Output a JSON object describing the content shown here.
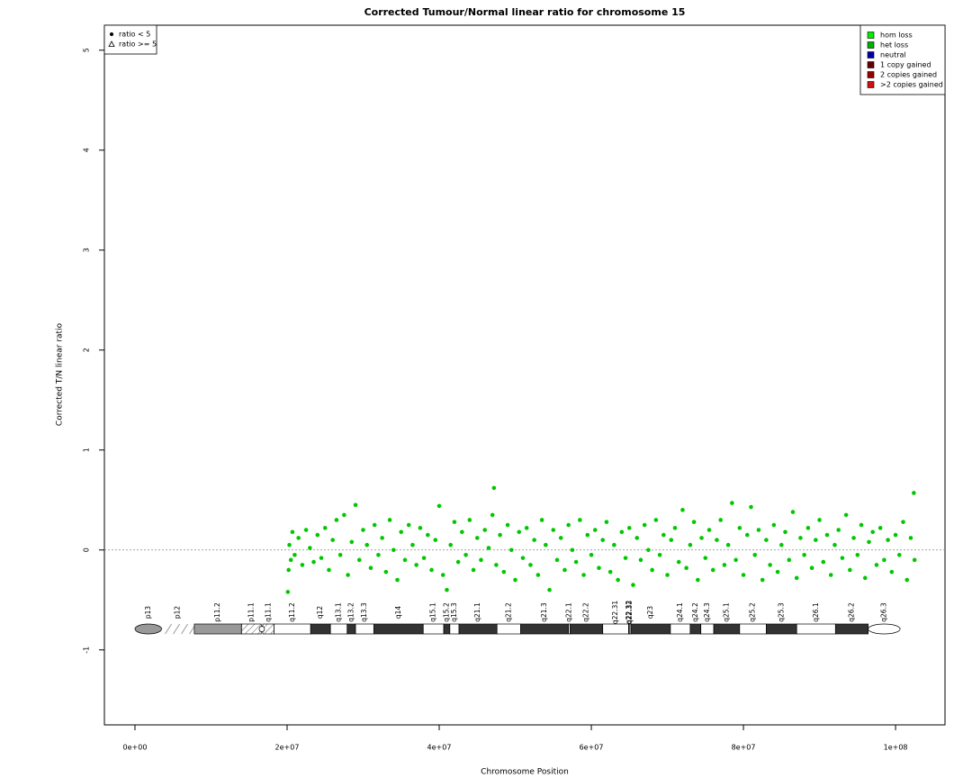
{
  "chart_data": {
    "type": "scatter",
    "title": "Corrected Tumour/Normal linear ratio for chromosome  15",
    "x_label": "Chromosome Position",
    "y_label": "Corrected T/N linear ratio",
    "xlim": [
      -4020000,
      106500000
    ],
    "ylim": [
      -1.75,
      5.25
    ],
    "xticks": [
      {
        "value": 0,
        "label": "0e+00"
      },
      {
        "value": 20000000,
        "label": "2e+07"
      },
      {
        "value": 40000000,
        "label": "4e+07"
      },
      {
        "value": 60000000,
        "label": "6e+07"
      },
      {
        "value": 80000000,
        "label": "8e+07"
      },
      {
        "value": 100000000,
        "label": "1e+08"
      }
    ],
    "yticks": [
      -1,
      0,
      1,
      2,
      3,
      4,
      5
    ],
    "hline": 0,
    "color": "#00c800",
    "x": [
      20100000,
      20200000,
      20300000,
      20500000,
      20700000,
      21000000,
      21500000,
      22000000,
      22500000,
      23000000,
      23500000,
      24000000,
      24500000,
      25000000,
      25500000,
      26000000,
      26500000,
      27000000,
      27500000,
      28000000,
      28500000,
      29000000,
      29500000,
      30000000,
      30500000,
      31000000,
      31500000,
      32000000,
      32500000,
      33000000,
      33500000,
      34000000,
      34500000,
      35000000,
      35500000,
      36000000,
      36500000,
      37000000,
      37500000,
      38000000,
      38500000,
      39000000,
      39500000,
      40000000,
      40500000,
      41000000,
      41500000,
      42000000,
      42500000,
      43000000,
      43500000,
      44000000,
      44500000,
      45000000,
      45500000,
      46000000,
      46500000,
      47000000,
      47200000,
      47500000,
      48000000,
      48500000,
      49000000,
      49500000,
      50000000,
      50500000,
      51000000,
      51500000,
      52000000,
      52500000,
      53000000,
      53500000,
      54000000,
      54500000,
      55000000,
      55500000,
      56000000,
      56500000,
      57000000,
      57500000,
      58000000,
      58500000,
      59000000,
      59500000,
      60000000,
      60500000,
      61000000,
      61500000,
      62000000,
      62500000,
      63000000,
      63500000,
      64000000,
      64500000,
      65000000,
      65500000,
      66000000,
      66500000,
      67000000,
      67500000,
      68000000,
      68500000,
      69000000,
      69500000,
      70000000,
      70500000,
      71000000,
      71500000,
      72000000,
      72500000,
      73000000,
      73500000,
      74000000,
      74500000,
      75000000,
      75500000,
      76000000,
      76500000,
      77000000,
      77500000,
      78000000,
      78500000,
      79000000,
      79500000,
      80000000,
      80500000,
      81000000,
      81500000,
      82000000,
      82500000,
      83000000,
      83500000,
      84000000,
      84500000,
      85000000,
      85500000,
      86000000,
      86500000,
      87000000,
      87500000,
      88000000,
      88500000,
      89000000,
      89500000,
      90000000,
      90500000,
      91000000,
      91500000,
      92000000,
      92500000,
      93000000,
      93500000,
      94000000,
      94500000,
      95000000,
      95500000,
      96000000,
      96500000,
      97000000,
      97500000,
      98000000,
      98500000,
      99000000,
      99500000,
      100000000,
      100500000,
      101000000,
      101500000,
      102000000,
      102400000,
      102500000
    ],
    "values": [
      -0.42,
      -0.2,
      0.05,
      -0.1,
      0.18,
      -0.05,
      0.12,
      -0.15,
      0.2,
      0.02,
      -0.12,
      0.15,
      -0.08,
      0.22,
      -0.2,
      0.1,
      0.3,
      -0.05,
      0.35,
      -0.25,
      0.08,
      0.45,
      -0.1,
      0.2,
      0.05,
      -0.18,
      0.25,
      -0.05,
      0.12,
      -0.22,
      0.3,
      0.0,
      -0.3,
      0.18,
      -0.1,
      0.25,
      0.05,
      -0.15,
      0.22,
      -0.08,
      0.15,
      -0.2,
      0.1,
      0.44,
      -0.25,
      -0.4,
      0.05,
      0.28,
      -0.12,
      0.18,
      -0.05,
      0.3,
      -0.2,
      0.12,
      -0.1,
      0.2,
      0.02,
      0.35,
      0.62,
      -0.15,
      0.15,
      -0.22,
      0.25,
      0.0,
      -0.3,
      0.18,
      -0.08,
      0.22,
      -0.15,
      0.1,
      -0.25,
      0.3,
      0.05,
      -0.4,
      0.2,
      -0.1,
      0.12,
      -0.2,
      0.25,
      0.0,
      -0.12,
      0.3,
      -0.25,
      0.15,
      -0.05,
      0.2,
      -0.18,
      0.1,
      0.28,
      -0.22,
      0.05,
      -0.3,
      0.18,
      -0.08,
      0.22,
      -0.35,
      0.12,
      -0.1,
      0.25,
      0.0,
      -0.2,
      0.3,
      -0.05,
      0.15,
      -0.25,
      0.1,
      0.22,
      -0.12,
      0.4,
      -0.18,
      0.05,
      0.28,
      -0.3,
      0.12,
      -0.08,
      0.2,
      -0.2,
      0.1,
      0.3,
      -0.15,
      0.05,
      0.47,
      -0.1,
      0.22,
      -0.25,
      0.15,
      0.43,
      -0.05,
      0.2,
      -0.3,
      0.1,
      -0.15,
      0.25,
      -0.22,
      0.05,
      0.18,
      -0.1,
      0.38,
      -0.28,
      0.12,
      -0.05,
      0.22,
      -0.18,
      0.1,
      0.3,
      -0.12,
      0.15,
      -0.25,
      0.05,
      0.2,
      -0.08,
      0.35,
      -0.2,
      0.12,
      -0.05,
      0.25,
      -0.28,
      0.08,
      0.18,
      -0.15,
      0.22,
      -0.1,
      0.1,
      -0.22,
      0.15,
      -0.05,
      0.28,
      -0.3,
      0.12,
      0.57,
      -0.1
    ],
    "shape_legend": [
      {
        "label": "ratio < 5",
        "marker": "circle"
      },
      {
        "label": "ratio >= 5",
        "marker": "triangle"
      }
    ],
    "state_legend": [
      {
        "name": "hom loss",
        "color": "#00ee00"
      },
      {
        "name": "het loss",
        "color": "#00b000"
      },
      {
        "name": "neutral",
        "color": "#0000aa"
      },
      {
        "name": "1 copy gained",
        "color": "#660000"
      },
      {
        "name": "2 copies gained",
        "color": "#990000"
      },
      {
        "name": ">2 copies gained",
        "color": "#cc1111"
      }
    ],
    "bands": [
      {
        "name": "p13",
        "start": 0,
        "end": 3500000,
        "stain": "gpos50"
      },
      {
        "name": "p12",
        "start": 3500000,
        "end": 7800000,
        "stain": "stalk"
      },
      {
        "name": "p11.2",
        "start": 7800000,
        "end": 14000000,
        "stain": "gpos50"
      },
      {
        "name": "p11.1",
        "start": 14000000,
        "end": 16600000,
        "stain": "acen"
      },
      {
        "name": "q11.1",
        "start": 16800000,
        "end": 18300000,
        "stain": "acen"
      },
      {
        "name": "q11.2",
        "start": 18300000,
        "end": 23100000,
        "stain": "gneg"
      },
      {
        "name": "q12",
        "start": 23100000,
        "end": 25700000,
        "stain": "gpos100"
      },
      {
        "name": "q13.1",
        "start": 25700000,
        "end": 27900000,
        "stain": "gneg"
      },
      {
        "name": "q13.2",
        "start": 27900000,
        "end": 29000000,
        "stain": "gpos100"
      },
      {
        "name": "q13.3",
        "start": 29000000,
        "end": 31400000,
        "stain": "gneg"
      },
      {
        "name": "q14",
        "start": 31400000,
        "end": 37900000,
        "stain": "gpos100"
      },
      {
        "name": "q15.1",
        "start": 37900000,
        "end": 40600000,
        "stain": "gneg"
      },
      {
        "name": "q15.2",
        "start": 40600000,
        "end": 41400000,
        "stain": "gpos100"
      },
      {
        "name": "q15.3",
        "start": 41400000,
        "end": 42600000,
        "stain": "gneg"
      },
      {
        "name": "q21.1",
        "start": 42600000,
        "end": 47600000,
        "stain": "gpos100"
      },
      {
        "name": "q21.2",
        "start": 47600000,
        "end": 50700000,
        "stain": "gneg"
      },
      {
        "name": "q21.3",
        "start": 50700000,
        "end": 57000000,
        "stain": "gpos100"
      },
      {
        "name": "q22.1",
        "start": 57000000,
        "end": 57200000,
        "stain": "gneg"
      },
      {
        "name": "q22.2",
        "start": 57200000,
        "end": 61500000,
        "stain": "gpos100"
      },
      {
        "name": "q22.31",
        "start": 61500000,
        "end": 64900000,
        "stain": "gneg"
      },
      {
        "name": "q22.32",
        "start": 64900000,
        "end": 65000000,
        "stain": "gpos100"
      },
      {
        "name": "q22.33",
        "start": 65000000,
        "end": 65200000,
        "stain": "gneg"
      },
      {
        "name": "q23",
        "start": 65200000,
        "end": 70400000,
        "stain": "gpos100"
      },
      {
        "name": "q24.1",
        "start": 70400000,
        "end": 73000000,
        "stain": "gneg"
      },
      {
        "name": "q24.2",
        "start": 73000000,
        "end": 74400000,
        "stain": "gpos100"
      },
      {
        "name": "q24.3",
        "start": 74400000,
        "end": 76100000,
        "stain": "gneg"
      },
      {
        "name": "q25.1",
        "start": 76100000,
        "end": 79500000,
        "stain": "gpos100"
      },
      {
        "name": "q25.2",
        "start": 79500000,
        "end": 83000000,
        "stain": "gneg"
      },
      {
        "name": "q25.3",
        "start": 83000000,
        "end": 87000000,
        "stain": "gpos100"
      },
      {
        "name": "q26.1",
        "start": 87000000,
        "end": 92100000,
        "stain": "gneg"
      },
      {
        "name": "q26.2",
        "start": 92100000,
        "end": 96400000,
        "stain": "gpos100"
      },
      {
        "name": "q26.3",
        "start": 96400000,
        "end": 100600000,
        "stain": "gneg"
      }
    ]
  }
}
